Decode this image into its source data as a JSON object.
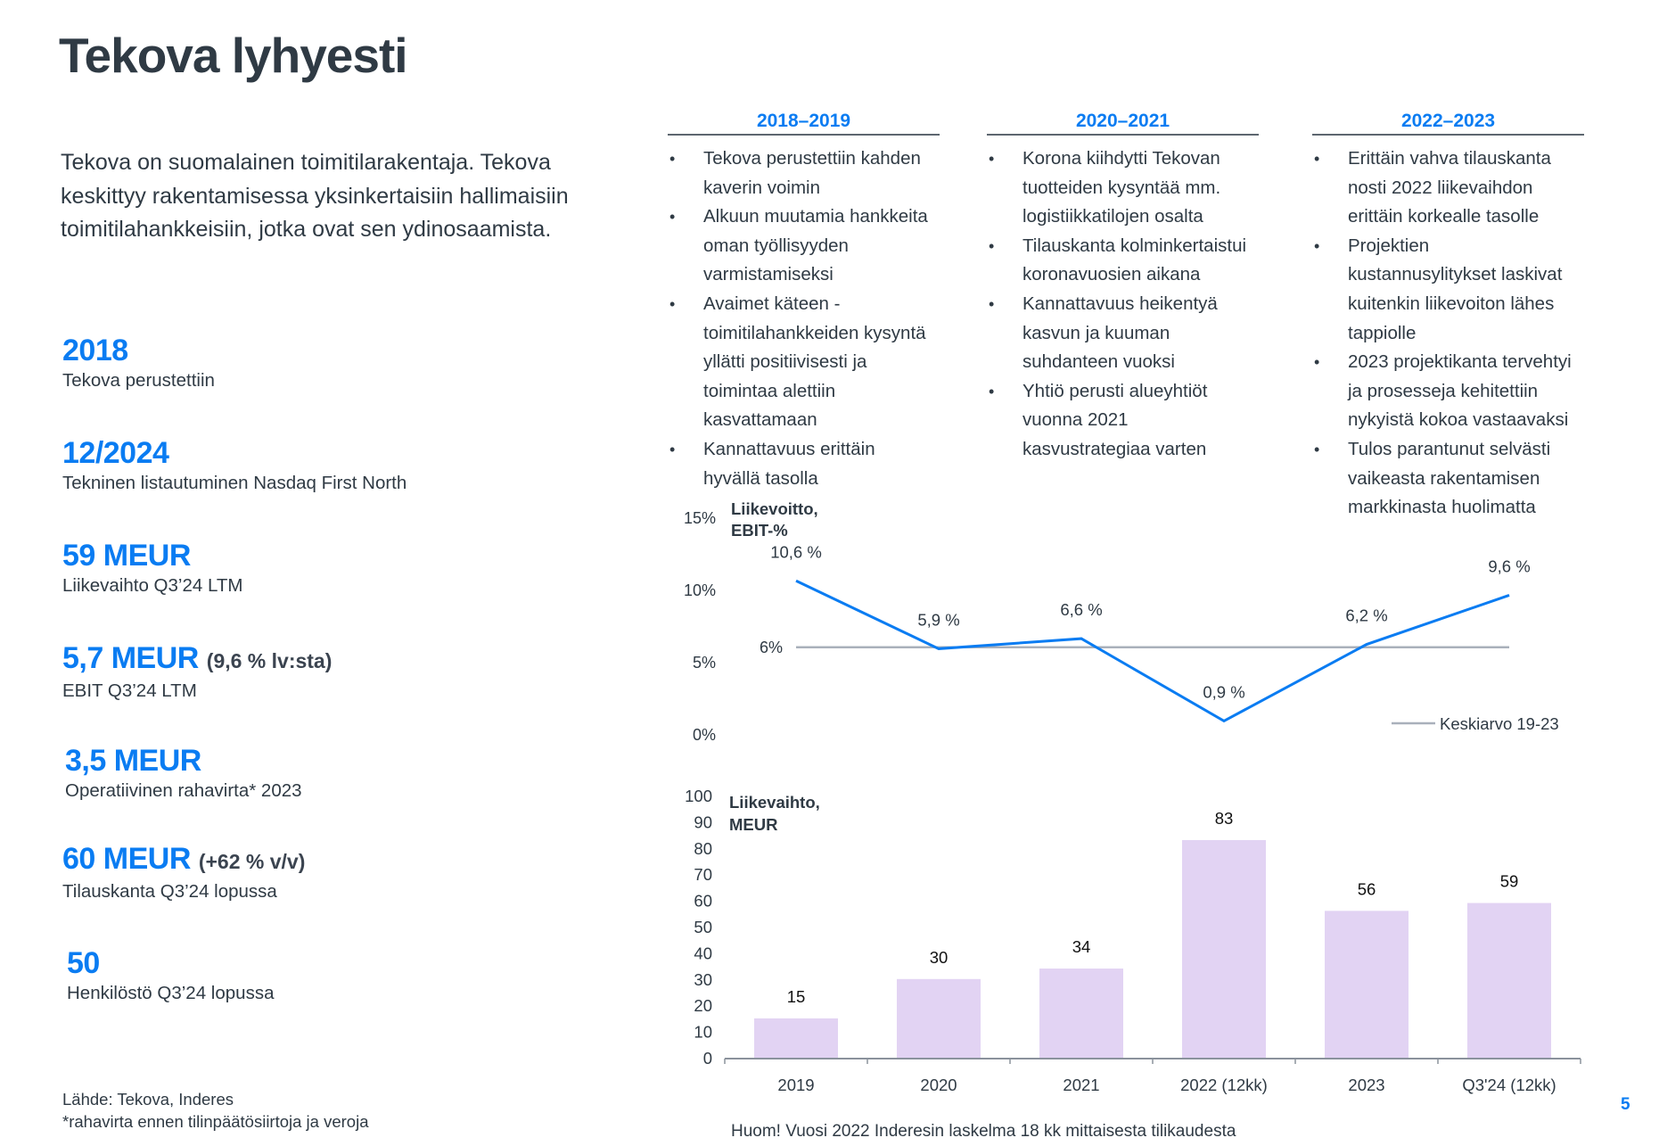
{
  "page": {
    "title": "Tekova lyhyesti",
    "intro": "Tekova on suomalainen toimitilarakentaja. Tekova keskittyy rakentamisessa yksinkertaisiin hallimaisiin toimitilahankkeisiin, jotka ovat sen ydinosaamista.",
    "page_number": "5",
    "accent_color": "#0a7cf2"
  },
  "stats": [
    {
      "value": "2018",
      "sub": "",
      "label": "Tekova perustettiin"
    },
    {
      "value": "12/2024",
      "sub": "",
      "label": "Tekninen listautuminen Nasdaq First North"
    },
    {
      "value": "59 MEUR",
      "sub": "",
      "label": "Liikevaihto Q3’24 LTM"
    },
    {
      "value": "5,7 MEUR",
      "sub": "(9,6 % lv:sta)",
      "label": "EBIT Q3’24 LTM"
    },
    {
      "value": "3,5 MEUR",
      "sub": "",
      "label": "Operatiivinen rahavirta* 2023"
    },
    {
      "value": "60 MEUR",
      "sub": "(+62 % v/v)",
      "label": "Tilauskanta Q3’24 lopussa"
    },
    {
      "value": "50",
      "sub": "",
      "label": "Henkilöstö Q3’24 lopussa"
    }
  ],
  "source": {
    "line1": "Lähde: Tekova, Inderes",
    "line2": "*rahavirta ennen tilinpäätösiirtoja ja veroja"
  },
  "timeline": [
    {
      "period": "2018–2019",
      "bullets": [
        "Tekova perustettiin kahden kaverin voimin",
        "Alkuun muutamia hankkeita oman työllisyyden varmistamiseksi",
        "Avaimet käteen - toimitilahankkeiden kysyntä yllätti positiivisesti ja toimintaa alettiin kasvattamaan",
        "Kannattavuus erittäin hyvällä tasolla"
      ]
    },
    {
      "period": "2020–2021",
      "bullets": [
        "Korona kiihdytti Tekovan tuotteiden kysyntää mm. logistiikkatilojen osalta",
        "Tilauskanta kolminkertaistui koronavuosien aikana",
        "Kannattavuus heikentyä kasvun ja kuuman suhdanteen vuoksi",
        "Yhtiö perusti alueyhtiöt vuonna 2021 kasvustrategiaa varten"
      ]
    },
    {
      "period": "2022–2023",
      "bullets": [
        "Erittäin vahva tilauskanta nosti 2022 liikevaihdon erittäin korkealle tasolle",
        "Projektien kustannusylitykset laskivat kuitenkin liikevoiton lähes tappiolle",
        "2023 projektikanta tervehtyi ja prosesseja kehitettiin nykyistä kokoa vastaavaksi",
        "Tulos parantunut selvästi vaikeasta rakentamisen markkinasta huolimatta"
      ]
    }
  ],
  "chart_data": [
    {
      "type": "line",
      "title": "Liikevoitto, EBIT-%",
      "title_lines": [
        "Liikevoitto,",
        "EBIT-%"
      ],
      "categories": [
        "2019",
        "2020",
        "2021",
        "2022 (12kk)",
        "2023",
        "Q3'24 (12kk)"
      ],
      "series": [
        {
          "name": "EBIT-%",
          "values": [
            10.6,
            5.9,
            6.6,
            0.9,
            6.2,
            9.6
          ],
          "labels": [
            "10,6 %",
            "5,9 %",
            "6,6 %",
            "0,9 %",
            "6,2 %",
            "9,6 %"
          ],
          "color": "#0a7cf2"
        },
        {
          "name": "Keskiarvo 19-23",
          "values": [
            6,
            6,
            6,
            6,
            6,
            6
          ],
          "label": "6%",
          "color": "#a9b0bb"
        }
      ],
      "yticks": [
        0,
        5,
        10,
        15
      ],
      "ytick_labels": [
        "0%",
        "5%",
        "10%",
        "15%"
      ],
      "ylim": [
        0,
        15
      ],
      "legend": {
        "label": "Keskiarvo 19-23",
        "position": "bottom-right"
      },
      "grid": false
    },
    {
      "type": "bar",
      "title": "Liikevaihto, MEUR",
      "title_lines": [
        "Liikevaihto,",
        "MEUR"
      ],
      "categories": [
        "2019",
        "2020",
        "2021",
        "2022 (12kk)",
        "2023",
        "Q3'24 (12kk)"
      ],
      "values": [
        15,
        30,
        34,
        83,
        56,
        59
      ],
      "labels": [
        "15",
        "30",
        "34",
        "83",
        "56",
        "59"
      ],
      "color": "#e2d3f3",
      "yticks": [
        0,
        10,
        20,
        30,
        40,
        50,
        60,
        70,
        80,
        90,
        100
      ],
      "ylim": [
        0,
        100
      ],
      "xlabel": "",
      "ylabel": "",
      "grid": false,
      "note": "Huom! Vuosi 2022 Inderesin laskelma 18 kk mittaisesta tilikaudesta"
    }
  ]
}
